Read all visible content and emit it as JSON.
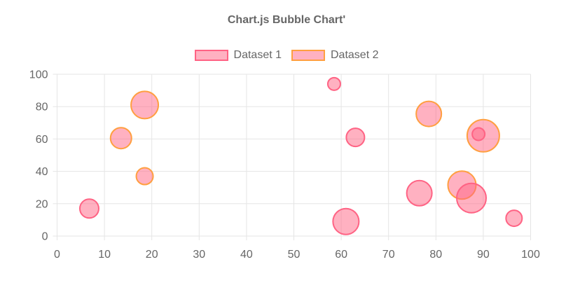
{
  "chart_data": {
    "type": "bubble",
    "title": "Chart.js Bubble Chart'",
    "legend_position": "top",
    "grid": true,
    "xlabel": "",
    "ylabel": "",
    "xlim": [
      0,
      100
    ],
    "ylim": [
      0,
      100
    ],
    "x_tick_step": 10,
    "y_tick_step": 20,
    "x_tick_labels": [
      "0",
      "10",
      "20",
      "30",
      "40",
      "50",
      "60",
      "70",
      "80",
      "90",
      "100"
    ],
    "y_tick_labels": [
      "0",
      "20",
      "40",
      "60",
      "80",
      "100"
    ],
    "colors": {
      "title_text": "#666666",
      "tick_text": "#666666",
      "legend_text": "#666666",
      "grid": "#e5e5e5",
      "pink_border": "#ff6384",
      "orange_border": "#ff9f40",
      "bubble_fill": "rgba(255,99,132,0.5)"
    },
    "datasets": [
      {
        "name": "Dataset 1",
        "border_color": "#ff6384",
        "fill_color": "rgba(255,99,132,0.5)",
        "points": [
          {
            "x": 6.8,
            "y": 17,
            "r": 13.5
          },
          {
            "x": 58.5,
            "y": 94,
            "r": 9
          },
          {
            "x": 61,
            "y": 9,
            "r": 18.5
          },
          {
            "x": 63,
            "y": 61,
            "r": 13
          },
          {
            "x": 76.5,
            "y": 26.5,
            "r": 18
          },
          {
            "x": 87.5,
            "y": 23.5,
            "r": 21
          },
          {
            "x": 89,
            "y": 63,
            "r": 9
          },
          {
            "x": 96.5,
            "y": 11,
            "r": 11.5
          }
        ]
      },
      {
        "name": "Dataset 2",
        "border_color": "#ff9f40",
        "fill_color": "rgba(255,99,132,0.5)",
        "points": [
          {
            "x": 13.5,
            "y": 60.5,
            "r": 15
          },
          {
            "x": 18.5,
            "y": 81,
            "r": 19.5
          },
          {
            "x": 18.5,
            "y": 37,
            "r": 12
          },
          {
            "x": 78.5,
            "y": 75.5,
            "r": 18
          },
          {
            "x": 85.5,
            "y": 31.5,
            "r": 20
          },
          {
            "x": 90,
            "y": 62,
            "r": 23
          }
        ]
      }
    ]
  }
}
